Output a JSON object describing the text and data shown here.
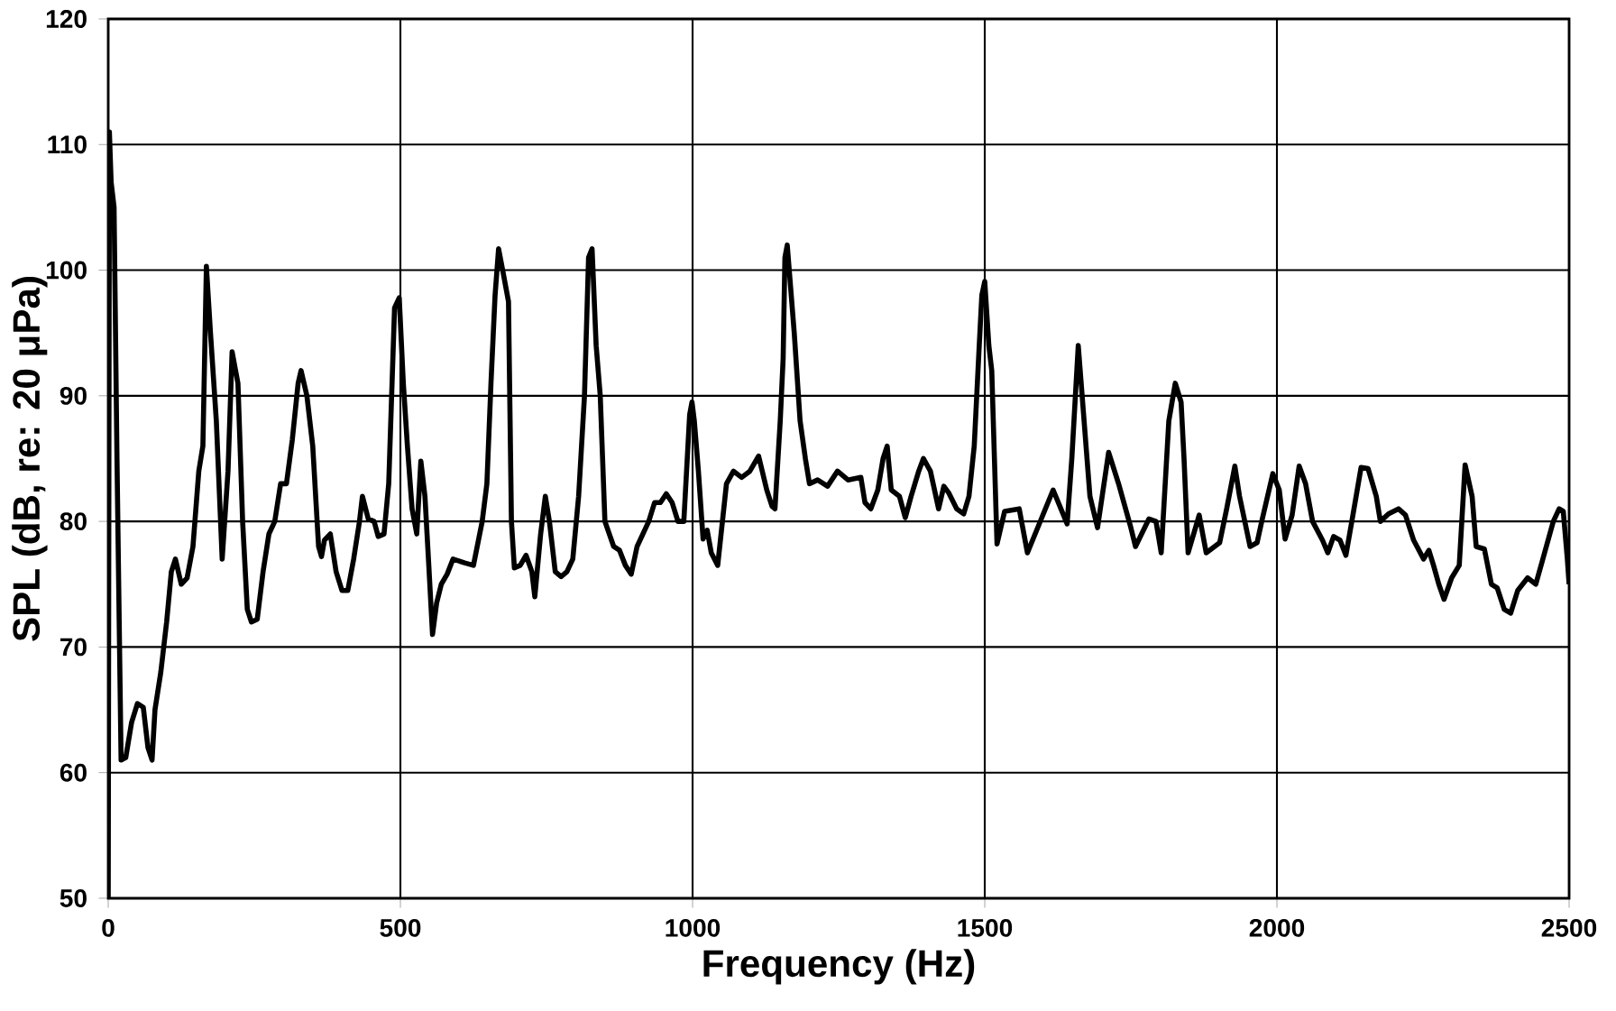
{
  "chart_data": {
    "type": "line",
    "xlabel": "Frequency (Hz)",
    "ylabel": "SPL (dB, re: 20 μPa)",
    "xlim": [
      0,
      2500
    ],
    "ylim": [
      50,
      120
    ],
    "xticks": [
      0,
      500,
      1000,
      1500,
      2000,
      2500
    ],
    "yticks": [
      50,
      60,
      70,
      80,
      90,
      100,
      110,
      120
    ],
    "grid": true,
    "marker": "none",
    "line_style": "solid",
    "series": [
      {
        "color": "#000000",
        "x": [
          0,
          2,
          5,
          10,
          15,
          22,
          30,
          40,
          50,
          60,
          68,
          75,
          80,
          90,
          100,
          108,
          115,
          125,
          135,
          145,
          155,
          162,
          168,
          175,
          185,
          195,
          205,
          212,
          222,
          230,
          238,
          245,
          255,
          265,
          275,
          285,
          295,
          305,
          315,
          325,
          330,
          340,
          350,
          360,
          365,
          370,
          380,
          390,
          400,
          410,
          420,
          430,
          435,
          445,
          455,
          462,
          472,
          480,
          490,
          498,
          505,
          512,
          520,
          528,
          535,
          542,
          548,
          555,
          562,
          570,
          580,
          590,
          610,
          625,
          640,
          648,
          655,
          662,
          668,
          675,
          685,
          690,
          695,
          705,
          715,
          725,
          730,
          740,
          748,
          755,
          765,
          775,
          785,
          795,
          805,
          815,
          822,
          828,
          835,
          842,
          850,
          865,
          875,
          885,
          895,
          905,
          915,
          925,
          935,
          945,
          955,
          965,
          975,
          985,
          995,
          999,
          1003,
          1010,
          1018,
          1025,
          1032,
          1043,
          1058,
          1070,
          1084,
          1098,
          1113,
          1127,
          1136,
          1141,
          1150,
          1155,
          1158,
          1162,
          1174,
          1184,
          1193,
          1200,
          1214,
          1231,
          1248,
          1266,
          1288,
          1295,
          1305,
          1317,
          1326,
          1333,
          1340,
          1354,
          1364,
          1374,
          1387,
          1395,
          1407,
          1421,
          1430,
          1438,
          1452,
          1464,
          1473,
          1482,
          1490,
          1495,
          1500,
          1507,
          1512,
          1521,
          1534,
          1559,
          1573,
          1617,
          1641,
          1649,
          1660,
          1680,
          1693,
          1712,
          1729,
          1750,
          1758,
          1781,
          1793,
          1802,
          1815,
          1826,
          1836,
          1841,
          1848,
          1867,
          1879,
          1902,
          1914,
          1928,
          1936,
          1954,
          1966,
          1974,
          1993,
          2004,
          2014,
          2026,
          2038,
          2049,
          2061,
          2078,
          2087,
          2097,
          2108,
          2118,
          2130,
          2144,
          2156,
          2170,
          2177,
          2191,
          2208,
          2220,
          2234,
          2251,
          2260,
          2268,
          2277,
          2286,
          2299,
          2312,
          2322,
          2334,
          2341,
          2355,
          2367,
          2377,
          2389,
          2400,
          2412,
          2429,
          2443,
          2455,
          2473,
          2483,
          2490,
          2497,
          2500
        ],
        "values": [
          50,
          111,
          107,
          105,
          85,
          61,
          61.2,
          64,
          65.5,
          65.2,
          62,
          61,
          65,
          68,
          72,
          76,
          77,
          75,
          75.5,
          78,
          84,
          86,
          100.3,
          95,
          88,
          77,
          84,
          93.5,
          91,
          80,
          73,
          72,
          72.2,
          76,
          79,
          80,
          83,
          83,
          86.5,
          91,
          92,
          90,
          86,
          78,
          77.2,
          78.5,
          79,
          76,
          74.5,
          74.5,
          77,
          80,
          82,
          80.2,
          80,
          78.8,
          79,
          83,
          97,
          97.8,
          91,
          86,
          81,
          79,
          84.8,
          82,
          77,
          71,
          73.5,
          75,
          75.8,
          77,
          76.7,
          76.5,
          80,
          83,
          91,
          98,
          101.7,
          100,
          97.5,
          80,
          76.3,
          76.5,
          77.3,
          76,
          74,
          79,
          82,
          80,
          76,
          75.6,
          76,
          77,
          82,
          90,
          101,
          101.7,
          94,
          90,
          80,
          78,
          77.7,
          76.5,
          75.8,
          78,
          79,
          80,
          81.5,
          81.5,
          82.2,
          81.5,
          80,
          80,
          88.5,
          89.5,
          88,
          84,
          78.6,
          79.3,
          77.5,
          76.5,
          83,
          84,
          83.5,
          84,
          85.2,
          82.5,
          81.2,
          81,
          88,
          93,
          101,
          102,
          95,
          88,
          85,
          83,
          83.3,
          82.8,
          84,
          83.3,
          83.5,
          81.5,
          81,
          82.5,
          85,
          86,
          82.5,
          82,
          80.3,
          82,
          84,
          85,
          84,
          81,
          82.8,
          82.3,
          81,
          80.6,
          82,
          86,
          93.5,
          98,
          99.1,
          94,
          92,
          78.2,
          80.8,
          81,
          77.5,
          82.5,
          79.8,
          85,
          94,
          82,
          79.5,
          85.5,
          83,
          79.5,
          78,
          80.2,
          80,
          77.5,
          88,
          91,
          89.5,
          85,
          77.5,
          80.5,
          77.5,
          78.3,
          81,
          84.4,
          82,
          78,
          78.3,
          80,
          83.8,
          82.5,
          78.6,
          80.5,
          84.4,
          83,
          80,
          78.5,
          77.5,
          78.8,
          78.5,
          77.3,
          80.5,
          84.3,
          84.2,
          82,
          80,
          80.6,
          81,
          80.5,
          78.5,
          77,
          77.7,
          76.5,
          75,
          73.8,
          75.5,
          76.5,
          84.5,
          82,
          78,
          77.8,
          75,
          74.7,
          73,
          72.7,
          74.5,
          75.5,
          75,
          77,
          80,
          81,
          80.8,
          77,
          75
        ]
      }
    ]
  }
}
